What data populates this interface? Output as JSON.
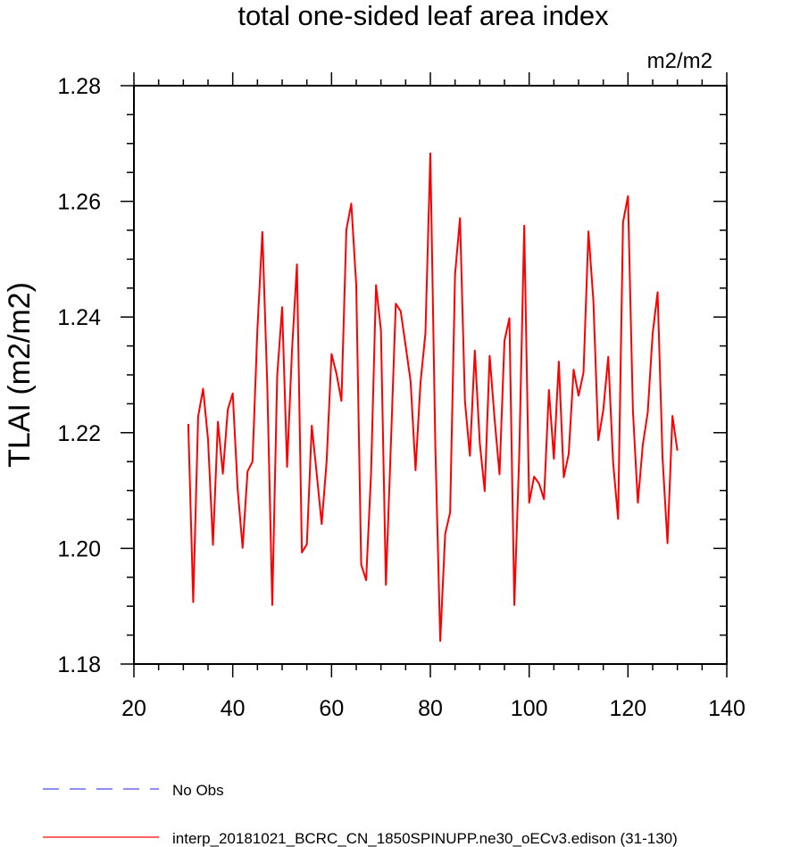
{
  "chart_data": {
    "type": "line",
    "title": "total one-sided leaf area index",
    "units_label": "m2/m2",
    "ylabel": "TLAI  (m2/m2)",
    "xlabel": "",
    "xlim": [
      20,
      140
    ],
    "ylim": [
      1.18,
      1.28
    ],
    "x_tick_labels": [
      "20",
      "40",
      "60",
      "80",
      "100",
      "120",
      "140"
    ],
    "y_tick_labels": [
      "1.18",
      "1.20",
      "1.22",
      "1.24",
      "1.26",
      "1.28"
    ],
    "grid": false,
    "legend_position": "bottom",
    "series": [
      {
        "name": "interp_20181021_BCRC_CN_1850SPINUPP.ne30_oECv3.edison (31-130)",
        "color": "#ff0000",
        "line_style": "solid",
        "x": [
          31,
          32,
          33,
          34,
          35,
          36,
          37,
          38,
          39,
          40,
          41,
          42,
          43,
          44,
          45,
          46,
          47,
          48,
          49,
          50,
          51,
          52,
          53,
          54,
          55,
          56,
          57,
          58,
          59,
          60,
          61,
          62,
          63,
          64,
          65,
          66,
          67,
          68,
          69,
          70,
          71,
          72,
          73,
          74,
          75,
          76,
          77,
          78,
          79,
          80,
          81,
          82,
          83,
          84,
          85,
          86,
          87,
          88,
          89,
          90,
          91,
          92,
          93,
          94,
          95,
          96,
          97,
          98,
          99,
          100,
          101,
          102,
          103,
          104,
          105,
          106,
          107,
          108,
          109,
          110,
          111,
          112,
          113,
          114,
          115,
          116,
          117,
          118,
          119,
          120,
          121,
          122,
          123,
          124,
          125,
          126,
          127,
          128,
          129,
          130
        ],
        "values": [
          1.2215,
          1.1907,
          1.2228,
          1.2276,
          1.2188,
          1.2006,
          1.2219,
          1.2129,
          1.224,
          1.2268,
          1.2102,
          1.2001,
          1.2133,
          1.215,
          1.238,
          1.2547,
          1.228,
          1.1902,
          1.2299,
          1.2417,
          1.2141,
          1.2343,
          1.2491,
          1.1993,
          1.2007,
          1.2212,
          1.2129,
          1.2042,
          1.215,
          1.2336,
          1.2302,
          1.2255,
          1.2551,
          1.2596,
          1.2455,
          1.1972,
          1.1945,
          1.213,
          1.2455,
          1.2377,
          1.1937,
          1.2177,
          1.2423,
          1.241,
          1.235,
          1.2289,
          1.2135,
          1.2286,
          1.2372,
          1.2683,
          1.218,
          1.184,
          1.2025,
          1.2062,
          1.2474,
          1.2571,
          1.2255,
          1.216,
          1.2342,
          1.2183,
          1.2099,
          1.2333,
          1.2224,
          1.2128,
          1.2359,
          1.2398,
          1.1902,
          1.2163,
          1.2558,
          1.2079,
          1.2124,
          1.2112,
          1.2085,
          1.2274,
          1.2155,
          1.2323,
          1.2123,
          1.2163,
          1.2309,
          1.2264,
          1.2304,
          1.2548,
          1.2428,
          1.2187,
          1.2239,
          1.2331,
          1.2148,
          1.2051,
          1.2564,
          1.2609,
          1.2238,
          1.2079,
          1.2179,
          1.2235,
          1.2372,
          1.2443,
          1.2156,
          1.2009,
          1.2229,
          1.2169
        ]
      },
      {
        "name": "No Obs",
        "color": "#4a4aee",
        "line_style": "dashed",
        "x": [],
        "values": []
      }
    ]
  }
}
